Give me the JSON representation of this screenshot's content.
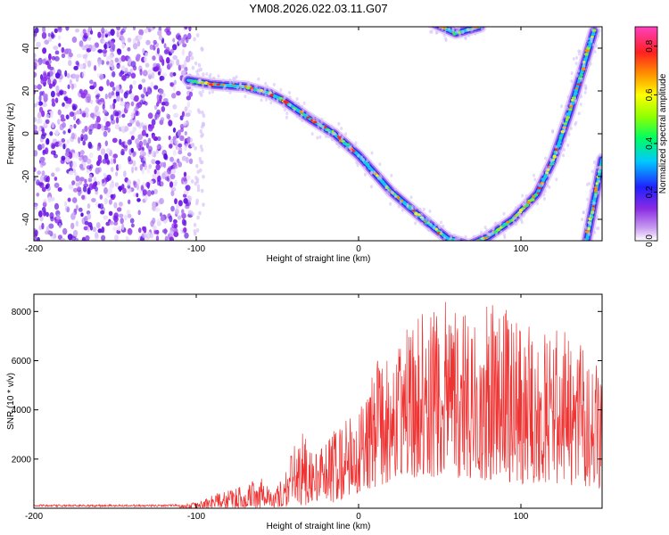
{
  "title": "YM08.2026.022.03.11.G07",
  "chart_data": [
    {
      "type": "heatmap",
      "xlabel": "Height of straight line (km)",
      "ylabel": "Frequency (Hz)",
      "xlim": [
        -200,
        150
      ],
      "ylim": [
        -50,
        50
      ],
      "xticks": [
        -200,
        -100,
        0,
        100
      ],
      "yticks": [
        -40,
        -20,
        0,
        20,
        40
      ],
      "colorbar": {
        "label": "Normalized spectral amplitude",
        "range": [
          0.0,
          0.88
        ],
        "ticks": [
          0.0,
          0.2,
          0.4,
          0.6,
          0.8
        ]
      },
      "noise_region": {
        "x": [
          -200,
          -103
        ],
        "y": [
          -50,
          50
        ]
      },
      "ridges": [
        {
          "name": "main",
          "points": [
            [
              -105,
              25
            ],
            [
              -90,
              23
            ],
            [
              -70,
              22
            ],
            [
              -55,
              19
            ],
            [
              -45,
              15
            ],
            [
              -30,
              7
            ],
            [
              -15,
              0
            ],
            [
              0,
              -10
            ],
            [
              20,
              -27
            ],
            [
              40,
              -40
            ],
            [
              55,
              -49
            ],
            [
              68,
              -52
            ],
            [
              80,
              -48
            ],
            [
              95,
              -40
            ],
            [
              110,
              -28
            ],
            [
              120,
              -12
            ],
            [
              130,
              10
            ],
            [
              138,
              30
            ],
            [
              145,
              48
            ]
          ]
        },
        {
          "name": "upper",
          "points": [
            [
              45,
              52
            ],
            [
              60,
              47
            ],
            [
              75,
              50
            ]
          ]
        },
        {
          "name": "right-edge",
          "points": [
            [
              140,
              -52
            ],
            [
              145,
              -32
            ],
            [
              150,
              -12
            ]
          ]
        }
      ]
    },
    {
      "type": "line",
      "xlabel": "Height of straight line (km)",
      "ylabel": "SNR (10 * v/v)",
      "xlim": [
        -200,
        150
      ],
      "ylim": [
        0,
        8700
      ],
      "xticks": [
        -200,
        -100,
        0,
        100
      ],
      "yticks": [
        2000,
        4000,
        6000,
        8000
      ],
      "color": "#ee3333",
      "envelope_points": [
        [
          -200,
          150
        ],
        [
          -120,
          150
        ],
        [
          -105,
          180
        ],
        [
          -95,
          400
        ],
        [
          -80,
          800
        ],
        [
          -70,
          1000
        ],
        [
          -60,
          1300
        ],
        [
          -50,
          900
        ],
        [
          -45,
          1700
        ],
        [
          -40,
          2700
        ],
        [
          -35,
          3300
        ],
        [
          -30,
          2400
        ],
        [
          -20,
          2600
        ],
        [
          -10,
          3800
        ],
        [
          0,
          3700
        ],
        [
          10,
          6500
        ],
        [
          20,
          6200
        ],
        [
          30,
          7300
        ],
        [
          40,
          8200
        ],
        [
          50,
          8600
        ],
        [
          60,
          8000
        ],
        [
          70,
          7800
        ],
        [
          80,
          8300
        ],
        [
          90,
          8200
        ],
        [
          100,
          7600
        ],
        [
          110,
          7200
        ],
        [
          120,
          7300
        ],
        [
          130,
          7100
        ],
        [
          140,
          6400
        ],
        [
          150,
          6700
        ]
      ],
      "floor_points": [
        [
          -200,
          0
        ],
        [
          -60,
          0
        ],
        [
          -20,
          150
        ],
        [
          0,
          500
        ],
        [
          20,
          1100
        ],
        [
          50,
          1300
        ],
        [
          100,
          1000
        ],
        [
          150,
          800
        ]
      ]
    }
  ]
}
